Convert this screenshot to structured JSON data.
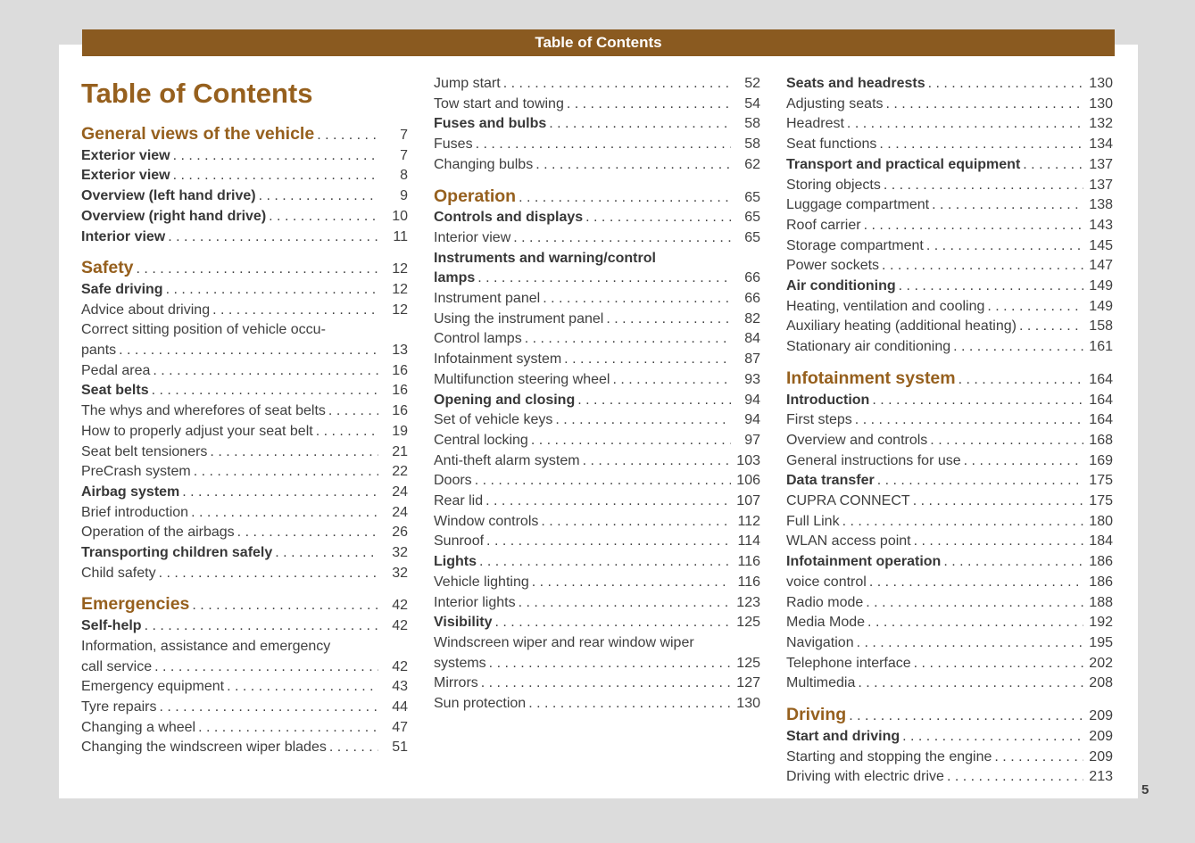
{
  "banner": {
    "title": "Table of Contents"
  },
  "page_title": "Table of Contents",
  "footer": {
    "page_number": "5"
  },
  "colors": {
    "accent_brown": "#96601e",
    "banner_brown": "#8a5a20",
    "text_gray": "#3f3f3f",
    "background_gray": "#dcdcdc",
    "page_white": "#ffffff"
  },
  "columns": [
    {
      "items": [
        {
          "type": "section",
          "label": "General views of the vehicle",
          "page": "7"
        },
        {
          "type": "bold",
          "label": "Exterior view",
          "page": "7"
        },
        {
          "type": "bold",
          "label": "Exterior view",
          "page": "8"
        },
        {
          "type": "bold",
          "label": "Overview (left hand drive)",
          "page": "9"
        },
        {
          "type": "bold",
          "label": "Overview (right hand drive)",
          "page": "10"
        },
        {
          "type": "bold",
          "label": "Interior view",
          "page": "11"
        },
        {
          "type": "section",
          "label": "Safety",
          "page": "12"
        },
        {
          "type": "bold",
          "label": "Safe driving",
          "page": "12"
        },
        {
          "type": "normal",
          "label": "Advice about driving",
          "page": "12"
        },
        {
          "type": "normal",
          "label": "Correct sitting position of vehicle occu-",
          "label2": "pants",
          "page": "13"
        },
        {
          "type": "normal",
          "label": "Pedal area",
          "page": "16"
        },
        {
          "type": "bold",
          "label": "Seat belts",
          "page": "16"
        },
        {
          "type": "normal",
          "label": "The whys and wherefores of seat belts",
          "page": "16"
        },
        {
          "type": "normal",
          "label": "How to properly adjust your seat belt",
          "page": "19"
        },
        {
          "type": "normal",
          "label": "Seat belt tensioners",
          "page": "21"
        },
        {
          "type": "normal",
          "label": "PreCrash system",
          "page": "22"
        },
        {
          "type": "bold",
          "label": "Airbag system",
          "page": "24"
        },
        {
          "type": "normal",
          "label": "Brief introduction",
          "page": "24"
        },
        {
          "type": "normal",
          "label": "Operation of the airbags",
          "page": "26"
        },
        {
          "type": "bold",
          "label": "Transporting children safely",
          "page": "32"
        },
        {
          "type": "normal",
          "label": "Child safety",
          "page": "32"
        },
        {
          "type": "section",
          "label": "Emergencies",
          "page": "42"
        },
        {
          "type": "bold",
          "label": "Self-help",
          "page": "42"
        },
        {
          "type": "normal",
          "label": "Information, assistance and emergency",
          "label2": "call service",
          "page": "42"
        },
        {
          "type": "normal",
          "label": "Emergency equipment",
          "page": "43"
        },
        {
          "type": "normal",
          "label": "Tyre repairs",
          "page": "44"
        },
        {
          "type": "normal",
          "label": "Changing a wheel",
          "page": "47"
        },
        {
          "type": "normal",
          "label": "Changing the windscreen wiper blades",
          "page": "51"
        }
      ]
    },
    {
      "items": [
        {
          "type": "normal",
          "label": "Jump start",
          "page": "52"
        },
        {
          "type": "normal",
          "label": "Tow start and towing",
          "page": "54"
        },
        {
          "type": "bold",
          "label": "Fuses and bulbs",
          "page": "58"
        },
        {
          "type": "normal",
          "label": "Fuses",
          "page": "58"
        },
        {
          "type": "normal",
          "label": "Changing bulbs",
          "page": "62"
        },
        {
          "type": "section",
          "label": "Operation",
          "page": "65"
        },
        {
          "type": "bold",
          "label": "Controls and displays",
          "page": "65"
        },
        {
          "type": "normal",
          "label": "Interior view",
          "page": "65"
        },
        {
          "type": "bold",
          "label": "Instruments and warning/control",
          "label2": "lamps",
          "page": "66"
        },
        {
          "type": "normal",
          "label": "Instrument panel",
          "page": "66"
        },
        {
          "type": "normal",
          "label": "Using the instrument panel",
          "page": "82"
        },
        {
          "type": "normal",
          "label": "Control lamps",
          "page": "84"
        },
        {
          "type": "normal",
          "label": "Infotainment system",
          "page": "87"
        },
        {
          "type": "normal",
          "label": "Multifunction steering wheel",
          "page": "93"
        },
        {
          "type": "bold",
          "label": "Opening and closing",
          "page": "94"
        },
        {
          "type": "normal",
          "label": "Set of vehicle keys",
          "page": "94"
        },
        {
          "type": "normal",
          "label": "Central locking",
          "page": "97"
        },
        {
          "type": "normal",
          "label": "Anti-theft alarm system",
          "page": "103"
        },
        {
          "type": "normal",
          "label": "Doors",
          "page": "106"
        },
        {
          "type": "normal",
          "label": "Rear lid",
          "page": "107"
        },
        {
          "type": "normal",
          "label": "Window controls",
          "page": "112"
        },
        {
          "type": "normal",
          "label": "Sunroof",
          "page": "114"
        },
        {
          "type": "bold",
          "label": "Lights",
          "page": "116"
        },
        {
          "type": "normal",
          "label": "Vehicle lighting",
          "page": "116"
        },
        {
          "type": "normal",
          "label": "Interior lights",
          "page": "123"
        },
        {
          "type": "bold",
          "label": "Visibility",
          "page": "125"
        },
        {
          "type": "normal",
          "label": "Windscreen wiper and rear window wiper",
          "label2": "systems",
          "page": "125"
        },
        {
          "type": "normal",
          "label": "Mirrors",
          "page": "127"
        },
        {
          "type": "normal",
          "label": "Sun protection",
          "page": "130"
        }
      ]
    },
    {
      "items": [
        {
          "type": "bold",
          "label": "Seats and headrests",
          "page": "130"
        },
        {
          "type": "normal",
          "label": "Adjusting seats",
          "page": "130"
        },
        {
          "type": "normal",
          "label": "Headrest",
          "page": "132"
        },
        {
          "type": "normal",
          "label": "Seat functions",
          "page": "134"
        },
        {
          "type": "bold",
          "label": "Transport and practical equipment",
          "page": "137"
        },
        {
          "type": "normal",
          "label": "Storing objects",
          "page": "137"
        },
        {
          "type": "normal",
          "label": "Luggage compartment",
          "page": "138"
        },
        {
          "type": "normal",
          "label": "Roof carrier",
          "page": "143"
        },
        {
          "type": "normal",
          "label": "Storage compartment",
          "page": "145"
        },
        {
          "type": "normal",
          "label": "Power sockets",
          "page": "147"
        },
        {
          "type": "bold",
          "label": "Air conditioning",
          "page": "149"
        },
        {
          "type": "normal",
          "label": "Heating, ventilation and cooling",
          "page": "149"
        },
        {
          "type": "normal",
          "label": "Auxiliary heating (additional heating)",
          "page": "158"
        },
        {
          "type": "normal",
          "label": "Stationary air conditioning",
          "page": "161"
        },
        {
          "type": "section",
          "label": "Infotainment system",
          "page": "164"
        },
        {
          "type": "bold",
          "label": "Introduction",
          "page": "164"
        },
        {
          "type": "normal",
          "label": "First steps",
          "page": "164"
        },
        {
          "type": "normal",
          "label": "Overview and controls",
          "page": "168"
        },
        {
          "type": "normal",
          "label": "General instructions for use",
          "page": "169"
        },
        {
          "type": "bold",
          "label": "Data transfer",
          "page": "175"
        },
        {
          "type": "normal",
          "label": "CUPRA CONNECT",
          "page": "175"
        },
        {
          "type": "normal",
          "label": "Full Link",
          "page": "180"
        },
        {
          "type": "normal",
          "label": "WLAN access point",
          "page": "184"
        },
        {
          "type": "bold",
          "label": "Infotainment operation",
          "page": "186"
        },
        {
          "type": "normal",
          "label": "voice control",
          "page": "186"
        },
        {
          "type": "normal",
          "label": "Radio mode",
          "page": "188"
        },
        {
          "type": "normal",
          "label": "Media Mode",
          "page": "192"
        },
        {
          "type": "normal",
          "label": "Navigation",
          "page": "195"
        },
        {
          "type": "normal",
          "label": "Telephone interface",
          "page": "202"
        },
        {
          "type": "normal",
          "label": "Multimedia",
          "page": "208"
        },
        {
          "type": "section",
          "label": "Driving",
          "page": "209"
        },
        {
          "type": "bold",
          "label": "Start and driving",
          "page": "209"
        },
        {
          "type": "normal",
          "label": "Starting and stopping the engine",
          "page": "209"
        },
        {
          "type": "normal",
          "label": "Driving with electric drive",
          "page": "213"
        }
      ]
    }
  ]
}
